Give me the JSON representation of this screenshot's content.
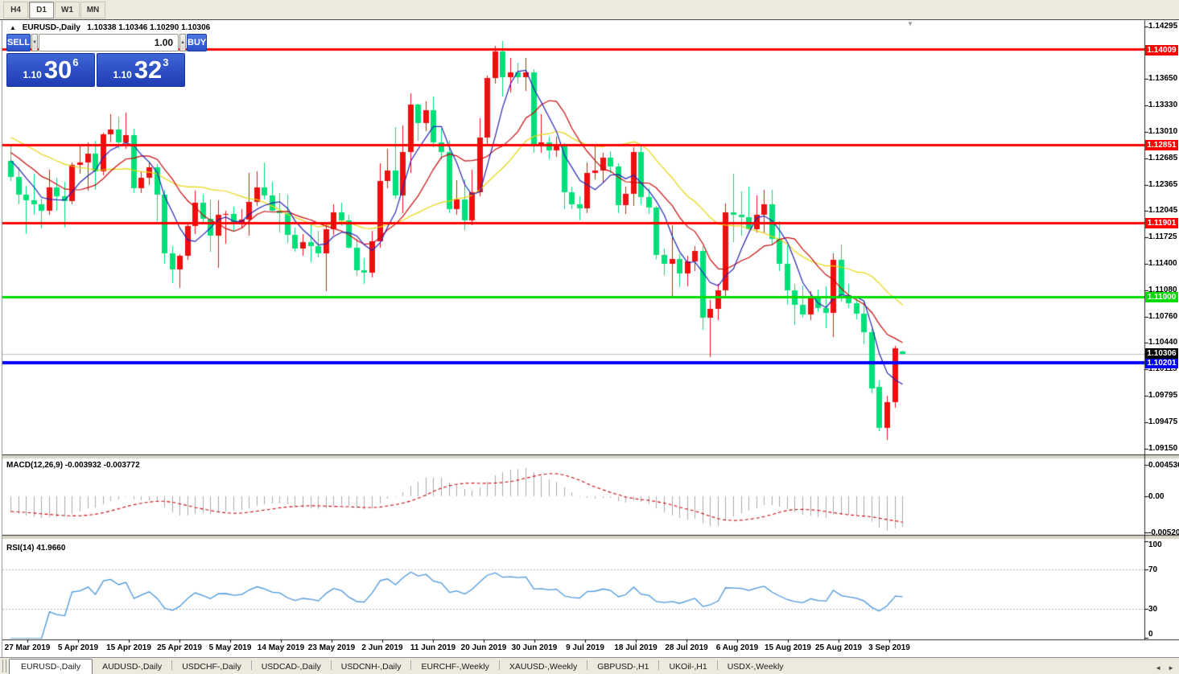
{
  "toolbar": {
    "timeframes": [
      {
        "label": "H4",
        "active": false
      },
      {
        "label": "D1",
        "active": true
      },
      {
        "label": "W1",
        "active": false
      },
      {
        "label": "MN",
        "active": false
      }
    ]
  },
  "icons": {
    "collapse": "▲",
    "shift_marker": "▼",
    "volume_down": "▼",
    "volume_up": "▲",
    "tab_scroll_left": "◄",
    "tab_scroll_right": "►"
  },
  "chart_header": {
    "symbol_timeframe": "EURUSD-,Daily",
    "ohlc": "1.10338 1.10346 1.10290 1.10306"
  },
  "trade_panel": {
    "sell_label": "SELL",
    "buy_label": "BUY",
    "volume": "1.00",
    "sell_price": {
      "prefix": "1.10",
      "big": "30",
      "sup": "6"
    },
    "buy_price": {
      "prefix": "1.10",
      "big": "32",
      "sup": "3"
    }
  },
  "tabs": {
    "items": [
      {
        "label": "EURUSD-,Daily",
        "active": true
      },
      {
        "label": "AUDUSD-,Daily",
        "active": false
      },
      {
        "label": "USDCHF-,Daily",
        "active": false
      },
      {
        "label": "USDCAD-,Daily",
        "active": false
      },
      {
        "label": "USDCNH-,Daily",
        "active": false
      },
      {
        "label": "EURCHF-,Weekly",
        "active": false
      },
      {
        "label": "XAUUSD-,Weekly",
        "active": false
      },
      {
        "label": "GBPUSD-,H1",
        "active": false
      },
      {
        "label": "UKOil-,H1",
        "active": false
      },
      {
        "label": "USDX-,Weekly",
        "active": false
      }
    ]
  },
  "chart_data": {
    "type": "candlestick",
    "symbol": "EURUSD",
    "timeframe": "Daily",
    "current_bar": {
      "open": 1.10338,
      "high": 1.10346,
      "low": 1.1029,
      "close": 1.10306
    },
    "ylim": [
      1.0909,
      1.1436
    ],
    "bull_color": "#ee0f0f",
    "bear_color": "#00e07a",
    "candles": [
      [
        1.1266,
        1.1286,
        1.1241,
        1.1246
      ],
      [
        1.1246,
        1.1258,
        1.1213,
        1.1224
      ],
      [
        1.1224,
        1.1235,
        1.1176,
        1.1218
      ],
      [
        1.1218,
        1.125,
        1.12,
        1.1213
      ],
      [
        1.1213,
        1.122,
        1.1183,
        1.1205
      ],
      [
        1.1205,
        1.1255,
        1.12,
        1.1233
      ],
      [
        1.1233,
        1.1245,
        1.1205,
        1.1222
      ],
      [
        1.1222,
        1.124,
        1.1184,
        1.1217
      ],
      [
        1.1217,
        1.1264,
        1.1213,
        1.1261
      ],
      [
        1.1261,
        1.1285,
        1.125,
        1.1264
      ],
      [
        1.1264,
        1.1288,
        1.1229,
        1.1274
      ],
      [
        1.1274,
        1.129,
        1.123,
        1.1253
      ],
      [
        1.1253,
        1.13,
        1.1248,
        1.1298
      ],
      [
        1.1298,
        1.1322,
        1.1288,
        1.1304
      ],
      [
        1.1304,
        1.1319,
        1.128,
        1.1288
      ],
      [
        1.1288,
        1.1324,
        1.128,
        1.1297
      ],
      [
        1.1297,
        1.1305,
        1.1226,
        1.1232
      ],
      [
        1.1232,
        1.1252,
        1.1226,
        1.1245
      ],
      [
        1.1245,
        1.1264,
        1.1236,
        1.1258
      ],
      [
        1.1258,
        1.1262,
        1.1192,
        1.1224
      ],
      [
        1.1224,
        1.123,
        1.114,
        1.1153
      ],
      [
        1.1153,
        1.1162,
        1.1117,
        1.1133
      ],
      [
        1.1133,
        1.1152,
        1.1111,
        1.115
      ],
      [
        1.115,
        1.119,
        1.1145,
        1.1186
      ],
      [
        1.1186,
        1.1229,
        1.1176,
        1.1215
      ],
      [
        1.1215,
        1.1224,
        1.1188,
        1.1195
      ],
      [
        1.1195,
        1.1219,
        1.1155,
        1.1174
      ],
      [
        1.1174,
        1.1218,
        1.1135,
        1.12
      ],
      [
        1.12,
        1.1205,
        1.1165,
        1.1201
      ],
      [
        1.1201,
        1.121,
        1.118,
        1.119
      ],
      [
        1.119,
        1.1207,
        1.1183,
        1.1194
      ],
      [
        1.1194,
        1.1251,
        1.1174,
        1.1216
      ],
      [
        1.1216,
        1.1253,
        1.1211,
        1.1233
      ],
      [
        1.1233,
        1.1264,
        1.1219,
        1.1223
      ],
      [
        1.1223,
        1.124,
        1.1204,
        1.1205
      ],
      [
        1.1205,
        1.1226,
        1.1178,
        1.1202
      ],
      [
        1.1202,
        1.1224,
        1.1166,
        1.1175
      ],
      [
        1.1175,
        1.1184,
        1.1155,
        1.1159
      ],
      [
        1.1159,
        1.1176,
        1.115,
        1.1167
      ],
      [
        1.1167,
        1.1188,
        1.1142,
        1.1162
      ],
      [
        1.1162,
        1.118,
        1.1148,
        1.1153
      ],
      [
        1.1153,
        1.1188,
        1.1107,
        1.1182
      ],
      [
        1.1182,
        1.1213,
        1.1175,
        1.1203
      ],
      [
        1.1203,
        1.1215,
        1.1186,
        1.1193
      ],
      [
        1.1193,
        1.12,
        1.1159,
        1.116
      ],
      [
        1.116,
        1.1171,
        1.1125,
        1.1132
      ],
      [
        1.1132,
        1.1147,
        1.1116,
        1.1129
      ],
      [
        1.1129,
        1.118,
        1.1124,
        1.1168
      ],
      [
        1.1168,
        1.1263,
        1.116,
        1.1241
      ],
      [
        1.1241,
        1.128,
        1.1232,
        1.1254
      ],
      [
        1.1254,
        1.1307,
        1.122,
        1.1223
      ],
      [
        1.1223,
        1.1309,
        1.1202,
        1.1276
      ],
      [
        1.1276,
        1.1348,
        1.1251,
        1.1334
      ],
      [
        1.1334,
        1.1335,
        1.129,
        1.1312
      ],
      [
        1.1312,
        1.1338,
        1.1302,
        1.1327
      ],
      [
        1.1327,
        1.1344,
        1.1282,
        1.1288
      ],
      [
        1.1288,
        1.1305,
        1.1268,
        1.1276
      ],
      [
        1.1276,
        1.129,
        1.1202,
        1.1207
      ],
      [
        1.1207,
        1.1242,
        1.12,
        1.1219
      ],
      [
        1.1219,
        1.1243,
        1.1181,
        1.1193
      ],
      [
        1.1193,
        1.1255,
        1.1187,
        1.1227
      ],
      [
        1.1227,
        1.1317,
        1.1222,
        1.1294
      ],
      [
        1.1294,
        1.1369,
        1.1286,
        1.1366
      ],
      [
        1.1366,
        1.1406,
        1.136,
        1.1399
      ],
      [
        1.1399,
        1.1412,
        1.1344,
        1.1367
      ],
      [
        1.1367,
        1.1391,
        1.1349,
        1.1373
      ],
      [
        1.1373,
        1.1385,
        1.136,
        1.1367
      ],
      [
        1.1367,
        1.1391,
        1.1351,
        1.1373
      ],
      [
        1.1373,
        1.1377,
        1.1275,
        1.1285
      ],
      [
        1.1285,
        1.1322,
        1.1275,
        1.1288
      ],
      [
        1.1288,
        1.1295,
        1.1268,
        1.1278
      ],
      [
        1.1278,
        1.1295,
        1.127,
        1.1283
      ],
      [
        1.1283,
        1.1287,
        1.1207,
        1.1227
      ],
      [
        1.1227,
        1.1234,
        1.1207,
        1.1213
      ],
      [
        1.1213,
        1.1222,
        1.1193,
        1.1208
      ],
      [
        1.1208,
        1.1264,
        1.1202,
        1.1251
      ],
      [
        1.1251,
        1.1285,
        1.1243,
        1.1254
      ],
      [
        1.1254,
        1.1275,
        1.1239,
        1.1269
      ],
      [
        1.1269,
        1.1277,
        1.1251,
        1.1259
      ],
      [
        1.1259,
        1.1263,
        1.1202,
        1.1212
      ],
      [
        1.1212,
        1.1234,
        1.1201,
        1.1225
      ],
      [
        1.1225,
        1.1282,
        1.1211,
        1.1276
      ],
      [
        1.1276,
        1.1283,
        1.1213,
        1.1221
      ],
      [
        1.1221,
        1.1232,
        1.1201,
        1.1209
      ],
      [
        1.1209,
        1.1211,
        1.1145,
        1.1151
      ],
      [
        1.1151,
        1.1159,
        1.1126,
        1.114
      ],
      [
        1.114,
        1.1187,
        1.1101,
        1.1146
      ],
      [
        1.1146,
        1.1152,
        1.1112,
        1.1128
      ],
      [
        1.1128,
        1.115,
        1.1113,
        1.1143
      ],
      [
        1.1143,
        1.1162,
        1.1131,
        1.1156
      ],
      [
        1.1156,
        1.1162,
        1.106,
        1.1075
      ],
      [
        1.1075,
        1.1096,
        1.1027,
        1.1085
      ],
      [
        1.1085,
        1.1116,
        1.1072,
        1.1108
      ],
      [
        1.1108,
        1.1214,
        1.1101,
        1.1203
      ],
      [
        1.1203,
        1.125,
        1.1167,
        1.12
      ],
      [
        1.12,
        1.1228,
        1.1174,
        1.1197
      ],
      [
        1.1197,
        1.1234,
        1.1181,
        1.1182
      ],
      [
        1.1182,
        1.1223,
        1.1178,
        1.12
      ],
      [
        1.12,
        1.123,
        1.1178,
        1.1213
      ],
      [
        1.1213,
        1.123,
        1.1163,
        1.1171
      ],
      [
        1.1171,
        1.1192,
        1.1131,
        1.114
      ],
      [
        1.114,
        1.1163,
        1.109,
        1.1108
      ],
      [
        1.1108,
        1.1116,
        1.1066,
        1.109
      ],
      [
        1.109,
        1.1114,
        1.1075,
        1.1078
      ],
      [
        1.1078,
        1.1107,
        1.1072,
        1.11
      ],
      [
        1.11,
        1.1109,
        1.1081,
        1.1086
      ],
      [
        1.1086,
        1.1113,
        1.1062,
        1.108
      ],
      [
        1.108,
        1.1153,
        1.1051,
        1.1145
      ],
      [
        1.1145,
        1.1164,
        1.1094,
        1.1102
      ],
      [
        1.1102,
        1.1116,
        1.1086,
        1.1092
      ],
      [
        1.1092,
        1.1098,
        1.1073,
        1.1079
      ],
      [
        1.1079,
        1.1094,
        1.1042,
        1.1057
      ],
      [
        1.1057,
        1.1061,
        1.0982,
        1.0988
      ],
      [
        1.099,
        1.0998,
        1.0936,
        1.094
      ],
      [
        1.094,
        1.098,
        1.0926,
        1.0972
      ],
      [
        1.0972,
        1.104,
        1.0965,
        1.1037
      ],
      [
        1.10338,
        1.10346,
        1.1029,
        1.10306
      ]
    ],
    "x_labels": [
      "27 Mar 2019",
      "5 Apr 2019",
      "15 Apr 2019",
      "25 Apr 2019",
      "5 May 2019",
      "14 May 2019",
      "23 May 2019",
      "2 Jun 2019",
      "11 Jun 2019",
      "20 Jun 2019",
      "30 Jun 2019",
      "9 Jul 2019",
      "18 Jul 2019",
      "28 Jul 2019",
      "6 Aug 2019",
      "15 Aug 2019",
      "25 Aug 2019",
      "3 Sep 2019"
    ],
    "price_axis_ticks": [
      "1.14295",
      "1.13650",
      "1.13330",
      "1.13010",
      "1.12685",
      "1.12365",
      "1.12045",
      "1.11725",
      "1.11400",
      "1.11080",
      "1.10760",
      "1.10440",
      "1.10115",
      "1.09795",
      "1.09475",
      "1.09150"
    ],
    "moving_averages": [
      {
        "name": "fast-ma",
        "period": 5,
        "color": "#2424b4"
      },
      {
        "name": "medium-ma",
        "period": 10,
        "color": "#cc0909"
      },
      {
        "name": "slow-ma",
        "period": 21,
        "color": "#e6d50a"
      }
    ],
    "levels": [
      {
        "label": "1.14009",
        "price": 1.14009,
        "color": "#ff0000",
        "width": 3
      },
      {
        "label": "1.12851",
        "price": 1.12851,
        "color": "#ff0000",
        "width": 3
      },
      {
        "label": "1.11901",
        "price": 1.11901,
        "color": "#ff0000",
        "width": 3
      },
      {
        "label": "1.11000",
        "price": 1.11,
        "color": "#00dc00",
        "width": 3
      },
      {
        "label": "1.10201",
        "price": 1.10201,
        "color": "#0000ff",
        "width": 4
      }
    ],
    "current_price_line": {
      "label": "1.10306",
      "price": 1.10306,
      "line_color": "#c0c0c0",
      "box_color": "#000000"
    },
    "macd": {
      "header": "MACD(12,26,9) -0.003932 -0.003772",
      "fast": 12,
      "slow": 26,
      "signal": 9,
      "value": -0.003932,
      "signal_value": -0.003772,
      "axis_ticks": [
        {
          "label": "0.004536",
          "value": 0.004536
        },
        {
          "label": "0.00",
          "value": 0.0
        },
        {
          "label": "-0.005205",
          "value": -0.005205
        }
      ],
      "ylim": [
        -0.00545,
        0.00535
      ],
      "histogram_color": "#aaaaaa",
      "signal_color": "#cc0909"
    },
    "rsi": {
      "header": "RSI(14) 41.9660",
      "period": 14,
      "value": 41.966,
      "axis_ticks": [
        {
          "label": "100",
          "value": 100
        },
        {
          "label": "70",
          "value": 70
        },
        {
          "label": "30",
          "value": 30
        },
        {
          "label": "0",
          "value": 0
        }
      ],
      "levels": [
        70,
        30
      ],
      "ylim": [
        0,
        100
      ],
      "color": "#4a96dc"
    }
  }
}
